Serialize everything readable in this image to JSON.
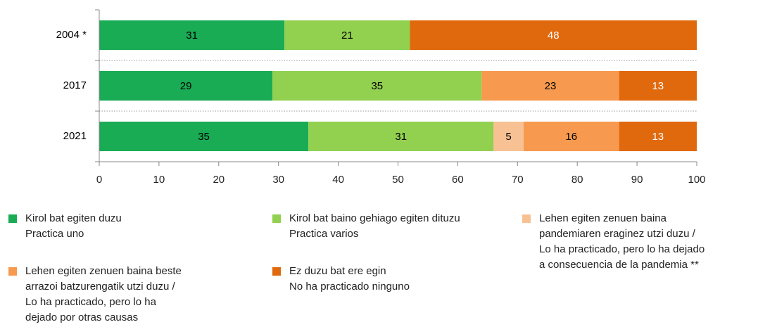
{
  "chart_data": {
    "type": "stacked_barh",
    "categories": [
      "2004 *",
      "2017",
      "2021"
    ],
    "series": [
      {
        "name": "Kirol bat egiten duzu\nPractica uno",
        "color": "#1aab55",
        "label_color": "#000000",
        "values": [
          31,
          29,
          35
        ]
      },
      {
        "name": "Kirol bat baino gehiago egiten dituzu\nPractica varios",
        "color": "#92d050",
        "label_color": "#000000",
        "values": [
          21,
          35,
          31
        ]
      },
      {
        "name": "Lehen egiten zenuen baina\npandemiaren eraginez utzi duzu /\nLo ha practicado, pero lo ha dejado\na consecuencia de la pandemia **",
        "color": "#f8c193",
        "label_color": "#000000",
        "values": [
          null,
          null,
          5
        ]
      },
      {
        "name": "Lehen egiten zenuen baina beste\narrazoi batzurengatik utzi duzu /\nLo ha practicado, pero lo ha\ndejado por otras causas",
        "color": "#f79a4f",
        "label_color": "#000000",
        "values": [
          null,
          23,
          16
        ]
      },
      {
        "name": "Ez duzu bat ere egin\nNo ha practicado ninguno",
        "color": "#e0690e",
        "label_color": "#ffffff",
        "values": [
          48,
          13,
          13
        ]
      }
    ],
    "xlim": [
      0,
      100
    ],
    "xticks": [
      0,
      10,
      20,
      30,
      40,
      50,
      60,
      70,
      80,
      90,
      100
    ]
  }
}
